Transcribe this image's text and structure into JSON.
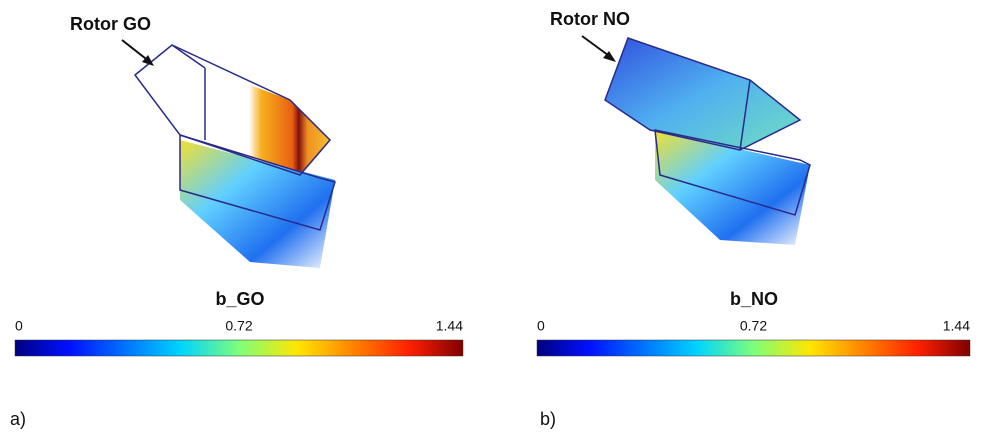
{
  "panels": [
    {
      "annotation": "Rotor GO",
      "colorbar": {
        "title": "b_GO",
        "range": [
          0,
          1.44
        ],
        "ticks": [
          0,
          0.72,
          1.44
        ]
      },
      "label": "a)"
    },
    {
      "annotation": "Rotor NO",
      "colorbar": {
        "title": "b_NO",
        "range": [
          0,
          1.44
        ],
        "ticks": [
          0,
          0.72,
          1.44
        ]
      },
      "label": "b)"
    }
  ]
}
